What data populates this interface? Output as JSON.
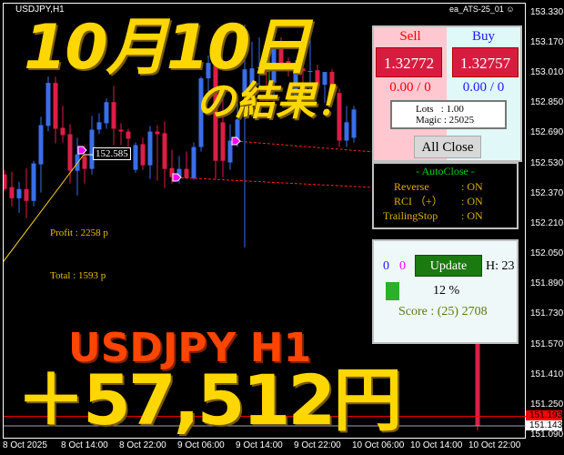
{
  "header": {
    "symbol_timeframe": "USDJPY,H1",
    "ea_name": "ea_ATS-25_01",
    "ea_icon": "smiley-icon"
  },
  "overlay": {
    "date_title": "10月10日",
    "result_title": "の結果！",
    "pair_title": "USDJPY H1",
    "profit_yen": "＋57,512円"
  },
  "stats": {
    "profit": "Profit : 2258 p",
    "total": "Total : 1593 p"
  },
  "price_tag": "152.585",
  "colors": {
    "bull": "#3a6ee8",
    "bear": "#dc1e46",
    "bid_line": "#ff0000",
    "ask_line": "#a0a0b0",
    "overlay_yellow": "#ffd700",
    "overlay_orange": "#ff4500"
  },
  "y_axis": [
    "153.330",
    "153.170",
    "153.010",
    "152.850",
    "152.690",
    "152.530",
    "152.370",
    "152.210",
    "152.050",
    "151.890",
    "151.730",
    "151.570",
    "151.410",
    "151.250",
    "151.090"
  ],
  "x_axis": [
    "8 Oct 2025",
    "8 Oct 14:00",
    "8 Oct 22:00",
    "9 Oct 06:00",
    "9 Oct 14:00",
    "9 Oct 22:00",
    "10 Oct 06:00",
    "10 Oct 14:00",
    "10 Oct 22:00"
  ],
  "current_prices": {
    "bid": "151.193",
    "ask": "151.143"
  },
  "candles_ohlc": [
    [
      152.477,
      152.501,
      152.389,
      152.399
    ],
    [
      152.409,
      152.491,
      152.307,
      152.35
    ],
    [
      152.35,
      152.438,
      152.273,
      152.399
    ],
    [
      152.399,
      152.51,
      152.244,
      152.336
    ],
    [
      152.336,
      152.549,
      152.307,
      152.535
    ],
    [
      152.53,
      152.782,
      152.38,
      152.738
    ],
    [
      152.734,
      152.995,
      152.705,
      152.962
    ],
    [
      152.962,
      152.995,
      152.641,
      152.719
    ],
    [
      152.724,
      152.84,
      152.646,
      152.685
    ],
    [
      152.69,
      152.743,
      152.428,
      152.496
    ],
    [
      152.496,
      152.671,
      152.365,
      152.583
    ],
    [
      152.574,
      152.632,
      152.428,
      152.506
    ],
    [
      152.506,
      152.787,
      152.477,
      152.714
    ],
    [
      152.714,
      152.801,
      152.69,
      152.753
    ],
    [
      152.748,
      152.879,
      152.719,
      152.86
    ],
    [
      152.86,
      152.947,
      152.632,
      152.719
    ],
    [
      152.714,
      152.748,
      152.632,
      152.704
    ],
    [
      152.704,
      152.719,
      152.622,
      152.666
    ],
    [
      152.501,
      152.646,
      152.486,
      152.632
    ],
    [
      152.637,
      152.671,
      152.501,
      152.525
    ],
    [
      152.525,
      152.734,
      152.452,
      152.704
    ],
    [
      152.704,
      152.738,
      152.443,
      152.69
    ],
    [
      152.695,
      152.758,
      152.404,
      152.506
    ],
    [
      152.51,
      152.608,
      152.428,
      152.462
    ],
    [
      152.462,
      152.574,
      152.428,
      152.506
    ],
    [
      152.506,
      152.598,
      152.452,
      152.457
    ],
    [
      152.457,
      152.646,
      152.447,
      152.622
    ],
    [
      152.622,
      152.995,
      152.598,
      152.986
    ],
    [
      152.986,
      153.107,
      152.889,
      153.068
    ],
    [
      153.068,
      153.131,
      152.452,
      152.549
    ],
    [
      152.753,
      152.913,
      152.462,
      152.549
    ],
    [
      152.54,
      152.743,
      152.501,
      152.656
    ],
    [
      152.656,
      152.889,
      152.622,
      152.768
    ],
    [
      152.889,
      153.272,
      152.089,
      153.034
    ],
    [
      152.932,
      153.18,
      152.913,
      153.039
    ],
    [
      153.044,
      153.204,
      152.937,
      153.044
    ],
    [
      153.044,
      153.107,
      152.865,
      153.02
    ],
    [
      152.962,
      153.131,
      152.855,
      153.18
    ],
    [
      153.175,
      153.204,
      153.059,
      153.059
    ],
    [
      153.078,
      153.097,
      152.995,
      153.063
    ],
    [
      152.889,
      153.083,
      152.865,
      153.044
    ],
    [
      153.039,
      153.049,
      152.962,
      153.025
    ],
    [
      153.02,
      153.277,
      152.913,
      153.025
    ],
    [
      153.029,
      153.059,
      152.913,
      152.952
    ],
    [
      152.952,
      153.02,
      152.855,
      153.02
    ],
    [
      153.02,
      153.034,
      152.855,
      152.903
    ],
    [
      152.908,
      152.932,
      152.622,
      152.656
    ],
    [
      152.656,
      152.84,
      152.622,
      152.753
    ],
    [
      152.671,
      152.84,
      152.646,
      152.821
    ]
  ],
  "last_candle_ohlc": [
    151.604,
    151.652,
    151.119,
    151.143
  ],
  "trade_panel": {
    "sell_label": "Sell",
    "buy_label": "Buy",
    "sell_price": "1.32772",
    "buy_price": "1.32757",
    "sell_pos": "0.00 / 0",
    "buy_pos": "0.00 / 0",
    "lots": "Lots   : 1.00",
    "magic": "Magic : 25025",
    "all_close": "All Close"
  },
  "autoclose": {
    "title": "- AutoClose -",
    "rows": [
      {
        "label": "Reverse",
        "value": ": ON"
      },
      {
        "label": "RCI （+）",
        "value": ": ON"
      },
      {
        "label": "TrailingStop",
        "value": ": ON"
      }
    ]
  },
  "info_panel": {
    "count_blue": "0",
    "count_magenta": "0",
    "update": "Update",
    "hour": "H: 23",
    "percent": "12 %",
    "percent_value": 12,
    "score": "Score : (25) 2708"
  }
}
